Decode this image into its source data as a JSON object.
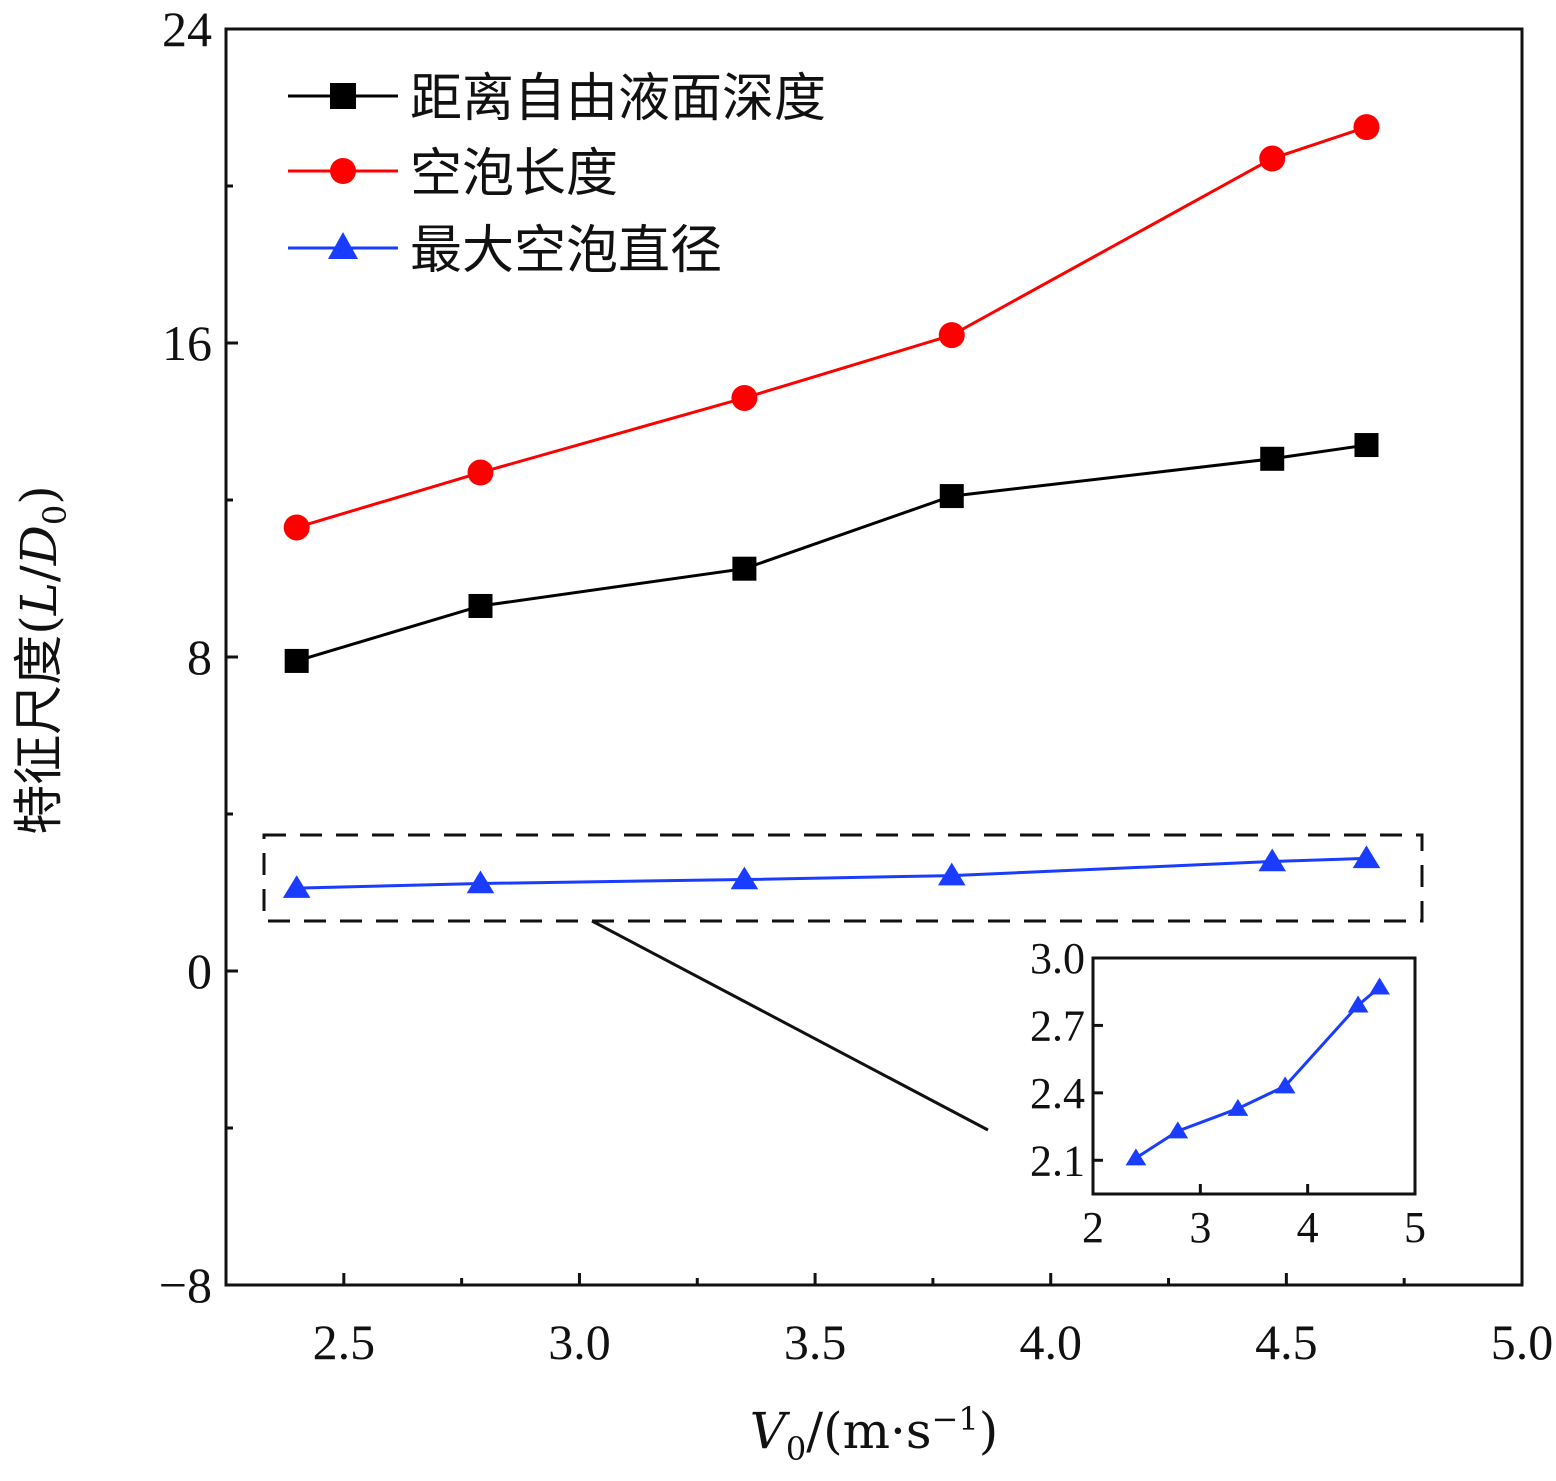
{
  "chart_data": {
    "type": "line",
    "title": "",
    "xlabel": {
      "v": "V",
      "sub": "0",
      "unit_open": "/(m·s",
      "sup": "−1",
      "unit_close": ")"
    },
    "ylabel": {
      "text": "特征尺度(",
      "L": "L",
      "slash": "/",
      "D": "D",
      "sub": "0",
      "close": ")"
    },
    "xlim": [
      2.25,
      5.0
    ],
    "ylim": [
      -8,
      24
    ],
    "xticks": [
      2.5,
      3.0,
      3.5,
      4.0,
      4.5,
      5.0
    ],
    "xtick_labels": [
      "2.5",
      "3.0",
      "3.5",
      "4.0",
      "4.5",
      "5.0"
    ],
    "yticks": [
      -8,
      0,
      8,
      16,
      24
    ],
    "ytick_labels": [
      "−8",
      "0",
      "8",
      "16",
      "24"
    ],
    "legend_position": "top-left",
    "series": [
      {
        "name": "距离自由液面深度",
        "color": "#000000",
        "marker": "square",
        "x": [
          2.4,
          2.79,
          3.35,
          3.79,
          4.47,
          4.67
        ],
        "y": [
          7.9,
          9.3,
          10.25,
          12.1,
          13.05,
          13.4
        ]
      },
      {
        "name": "空泡长度",
        "color": "#ff0000",
        "marker": "circle",
        "x": [
          2.4,
          2.79,
          3.35,
          3.79,
          4.47,
          4.67
        ],
        "y": [
          11.3,
          12.7,
          14.6,
          16.2,
          20.7,
          21.5
        ]
      },
      {
        "name": "最大空泡直径",
        "color": "#1a3cff",
        "marker": "triangle",
        "x": [
          2.4,
          2.79,
          3.35,
          3.79,
          4.47,
          4.67
        ],
        "y": [
          2.11,
          2.23,
          2.33,
          2.43,
          2.79,
          2.87
        ]
      }
    ],
    "inset": {
      "xlim": [
        2,
        5
      ],
      "ylim": [
        1.95,
        3.0
      ],
      "xticks": [
        2,
        3,
        4,
        5
      ],
      "xtick_labels": [
        "2",
        "3",
        "4",
        "5"
      ],
      "yticks": [
        2.1,
        2.4,
        2.7,
        3.0
      ],
      "ytick_labels": [
        "2.1",
        "2.4",
        "2.7",
        "3.0"
      ],
      "series_index": 2
    }
  }
}
